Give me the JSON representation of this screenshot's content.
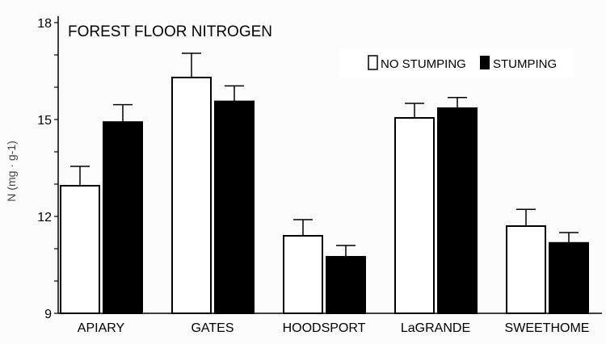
{
  "chart_data": {
    "type": "bar",
    "title": "FOREST FLOOR NITROGEN",
    "xlabel": "",
    "ylabel": "N (mg · g-1)",
    "ylim": [
      9,
      18
    ],
    "yticks": [
      "9",
      "12",
      "15",
      "18"
    ],
    "categories": [
      "APIARY",
      "GATES",
      "HOODSPORT",
      "LaGRANDE",
      "SWEETHOME"
    ],
    "legend_position": "top-right",
    "series": [
      {
        "name": "NO STUMPING",
        "color": "#ffffff",
        "values": [
          12.95,
          16.3,
          11.4,
          15.05,
          11.7
        ],
        "error_upper": [
          13.55,
          17.05,
          11.9,
          15.5,
          12.22
        ]
      },
      {
        "name": "STUMPING",
        "color": "#000000",
        "values": [
          14.92,
          15.56,
          10.75,
          15.35,
          11.18
        ],
        "error_upper": [
          15.46,
          16.04,
          11.1,
          15.68,
          11.5
        ]
      }
    ]
  }
}
